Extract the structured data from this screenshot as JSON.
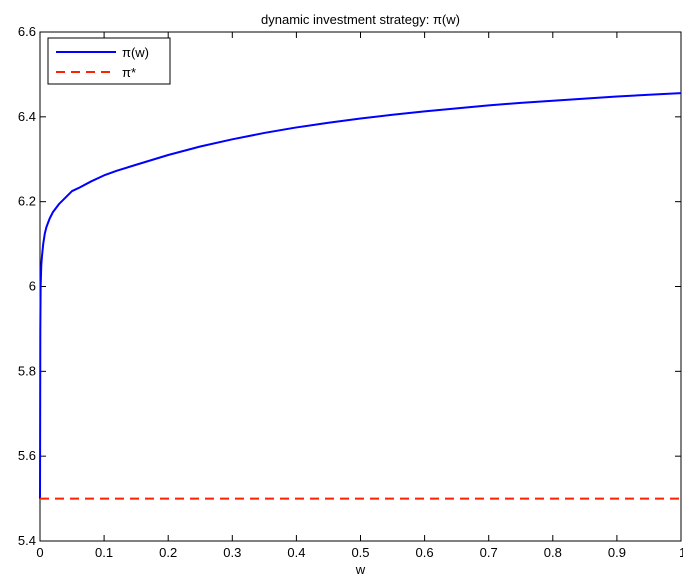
{
  "chart_data": {
    "type": "line",
    "title": "dynamic investment strategy: π(w)",
    "xlabel": "w",
    "ylabel": "",
    "xlim": [
      0,
      1
    ],
    "ylim": [
      5.4,
      6.6
    ],
    "xticks": [
      0,
      0.1,
      0.2,
      0.3,
      0.4,
      0.5,
      0.6,
      0.7,
      0.8,
      0.9,
      1
    ],
    "xtick_labels": [
      "0",
      "0.1",
      "0.2",
      "0.3",
      "0.4",
      "0.5",
      "0.6",
      "0.7",
      "0.8",
      "0.9",
      "1"
    ],
    "yticks": [
      5.4,
      5.6,
      5.8,
      6.0,
      6.2,
      6.4,
      6.6
    ],
    "ytick_labels": [
      "5.4",
      "5.6",
      "5.8",
      "6",
      "6.2",
      "6.4",
      "6.6"
    ],
    "grid": false,
    "legend_position": "top-left",
    "series": [
      {
        "name": "π(w)",
        "color": "#0000ff",
        "style": "solid",
        "x": [
          0,
          0.0005,
          0.001,
          0.002,
          0.003,
          0.005,
          0.0075,
          0.01,
          0.015,
          0.02,
          0.03,
          0.04,
          0.05,
          0.06,
          0.08,
          0.1,
          0.12,
          0.15,
          0.2,
          0.25,
          0.3,
          0.35,
          0.4,
          0.45,
          0.5,
          0.55,
          0.6,
          0.65,
          0.7,
          0.75,
          0.8,
          0.85,
          0.9,
          0.95,
          1.0
        ],
        "y": [
          5.5,
          5.9,
          6.0,
          6.05,
          6.07,
          6.1,
          6.125,
          6.14,
          6.16,
          6.175,
          6.195,
          6.21,
          6.225,
          6.232,
          6.248,
          6.262,
          6.273,
          6.287,
          6.31,
          6.33,
          6.347,
          6.362,
          6.375,
          6.386,
          6.396,
          6.405,
          6.413,
          6.42,
          6.427,
          6.433,
          6.438,
          6.443,
          6.448,
          6.452,
          6.456
        ]
      },
      {
        "name": "π*",
        "color": "#ff2200",
        "style": "dashed",
        "x": [
          0,
          1
        ],
        "y": [
          5.5,
          5.5
        ]
      }
    ]
  }
}
